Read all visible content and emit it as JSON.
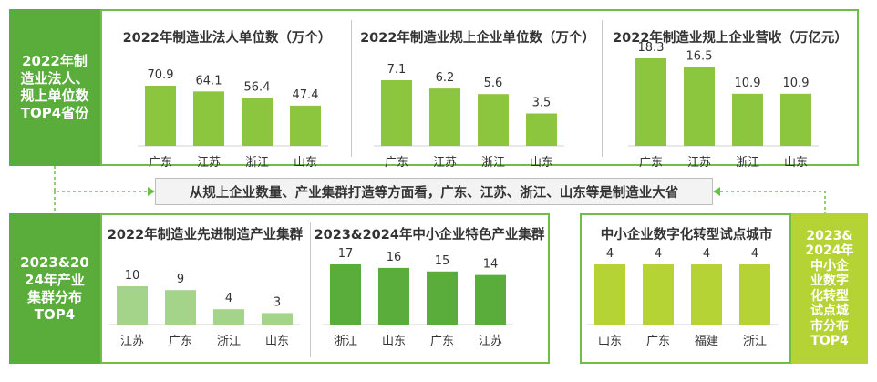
{
  "labels": {
    "top_left": "2022年制\n造业法人、\n规上单位数\nTOP4省份",
    "bottom_left": "2023&20\n24年产业\n集群分布\nTOP4",
    "bottom_right": "2023&\n2024年\n中小企\n业数字\n化转型\n试点城\n市分布\nTOP4"
  },
  "banner": "从规上企业数量、产业集群打造等方面看，广东、江苏、浙江、山东等是制造业大省",
  "colors": {
    "dark_green": "#5aac3b",
    "bright_green": "#8cc63f",
    "light_green": "#a3d48a",
    "lime_green": "#b5d334",
    "border_green": "#6fbf44"
  },
  "chart_data": [
    {
      "type": "bar",
      "title": "2022年制造业法人单位数（万个）",
      "categories": [
        "广东",
        "江苏",
        "浙江",
        "山东"
      ],
      "values": [
        70.9,
        64.1,
        56.4,
        47.4
      ],
      "labels": [
        "70.9",
        "64.1",
        "56.4",
        "47.4"
      ],
      "color": "#8cc63f"
    },
    {
      "type": "bar",
      "title": "2022年制造业规上企业单位数（万个）",
      "categories": [
        "广东",
        "江苏",
        "浙江",
        "山东"
      ],
      "values": [
        7.1,
        6.2,
        5.6,
        3.5
      ],
      "labels": [
        "7.1",
        "6.2",
        "5.6",
        "3.5"
      ],
      "color": "#8cc63f"
    },
    {
      "type": "bar",
      "title": "2022年制造业规上企业营收（万亿元）",
      "categories": [
        "广东",
        "江苏",
        "浙江",
        "山东"
      ],
      "values": [
        18.3,
        16.5,
        10.9,
        10.9
      ],
      "labels": [
        "18.3",
        "16.5",
        "10.9",
        "10.9"
      ],
      "color": "#8cc63f"
    },
    {
      "type": "bar",
      "title": "2022年制造业先进制造产业集群",
      "categories": [
        "江苏",
        "广东",
        "浙江",
        "山东"
      ],
      "values": [
        10,
        9,
        4,
        3
      ],
      "labels": [
        "10",
        "9",
        "4",
        "3"
      ],
      "color": "#a3d48a"
    },
    {
      "type": "bar",
      "title": "2023&2024年中小企业特色产业集群",
      "categories": [
        "浙江",
        "山东",
        "广东",
        "江苏"
      ],
      "values": [
        17,
        16,
        15,
        14
      ],
      "labels": [
        "17",
        "16",
        "15",
        "14"
      ],
      "color": "#5aac3b"
    },
    {
      "type": "bar",
      "title": "中小企业数字化转型试点城市",
      "categories": [
        "山东",
        "广东",
        "福建",
        "浙江"
      ],
      "values": [
        4,
        4,
        4,
        4
      ],
      "labels": [
        "4",
        "4",
        "4",
        "4"
      ],
      "color": "#b5d334"
    }
  ]
}
